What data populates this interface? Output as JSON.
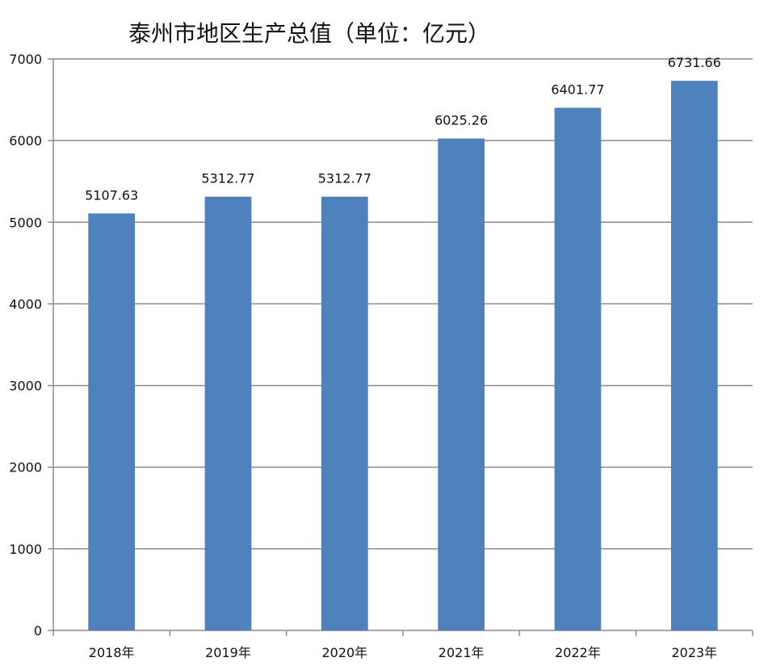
{
  "chart_data": {
    "type": "bar",
    "title": "泰州市地区生产总值（单位：亿元）",
    "categories": [
      "2018年",
      "2019年",
      "2020年",
      "2021年",
      "2022年",
      "2023年"
    ],
    "values": [
      5107.63,
      5312.77,
      5312.77,
      6025.26,
      6401.77,
      6731.66
    ],
    "value_labels": [
      "5107.63",
      "5312.77",
      "5312.77",
      "6025.26",
      "6401.77",
      "6731.66"
    ],
    "xlabel": "",
    "ylabel": "",
    "ylim": [
      0,
      7000
    ],
    "y_ticks": [
      "0",
      "1000",
      "2000",
      "3000",
      "4000",
      "5000",
      "6000",
      "7000"
    ],
    "grid": true,
    "legend": "none",
    "bar_color": "#4f81bd"
  }
}
